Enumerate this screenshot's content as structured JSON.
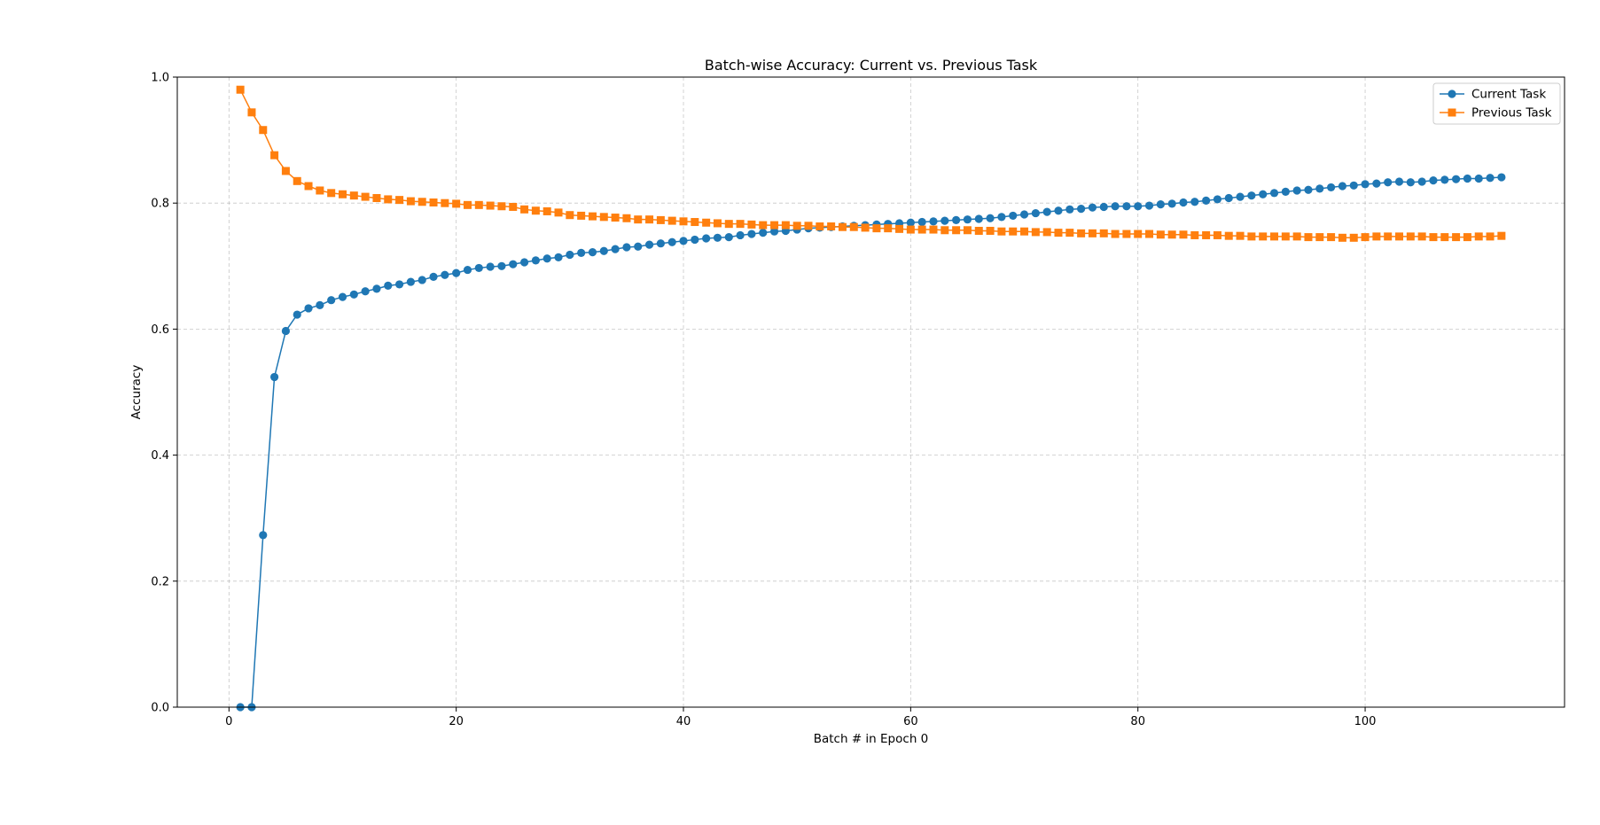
{
  "chart_data": {
    "type": "line",
    "title": "Batch-wise Accuracy: Current vs. Previous Task",
    "xlabel": "Batch # in Epoch 0",
    "ylabel": "Accuracy",
    "xlim": [
      -4.55,
      117.55
    ],
    "ylim": [
      0,
      1
    ],
    "x_ticks": [
      0,
      20,
      40,
      60,
      80,
      100
    ],
    "y_ticks": [
      0.0,
      0.2,
      0.4,
      0.6,
      0.8,
      1.0
    ],
    "grid": true,
    "legend_position": "top-right",
    "x": [
      1,
      2,
      3,
      4,
      5,
      6,
      7,
      8,
      9,
      10,
      11,
      12,
      13,
      14,
      15,
      16,
      17,
      18,
      19,
      20,
      21,
      22,
      23,
      24,
      25,
      26,
      27,
      28,
      29,
      30,
      31,
      32,
      33,
      34,
      35,
      36,
      37,
      38,
      39,
      40,
      41,
      42,
      43,
      44,
      45,
      46,
      47,
      48,
      49,
      50,
      51,
      52,
      53,
      54,
      55,
      56,
      57,
      58,
      59,
      60,
      61,
      62,
      63,
      64,
      65,
      66,
      67,
      68,
      69,
      70,
      71,
      72,
      73,
      74,
      75,
      76,
      77,
      78,
      79,
      80,
      81,
      82,
      83,
      84,
      85,
      86,
      87,
      88,
      89,
      90,
      91,
      92,
      93,
      94,
      95,
      96,
      97,
      98,
      99,
      100,
      101,
      102,
      103,
      104,
      105,
      106,
      107,
      108,
      109,
      110,
      111,
      112
    ],
    "series": [
      {
        "name": "Current Task",
        "color": "#1f77b4",
        "marker": "circle",
        "values": [
          0.0,
          0.0,
          0.273,
          0.524,
          0.597,
          0.623,
          0.633,
          0.638,
          0.646,
          0.651,
          0.655,
          0.66,
          0.664,
          0.669,
          0.671,
          0.675,
          0.678,
          0.683,
          0.686,
          0.689,
          0.694,
          0.697,
          0.699,
          0.7,
          0.703,
          0.706,
          0.709,
          0.712,
          0.714,
          0.718,
          0.721,
          0.722,
          0.724,
          0.727,
          0.73,
          0.731,
          0.734,
          0.736,
          0.738,
          0.74,
          0.742,
          0.744,
          0.745,
          0.746,
          0.749,
          0.751,
          0.753,
          0.755,
          0.756,
          0.758,
          0.76,
          0.761,
          0.762,
          0.763,
          0.764,
          0.765,
          0.766,
          0.767,
          0.768,
          0.769,
          0.77,
          0.771,
          0.772,
          0.773,
          0.774,
          0.775,
          0.776,
          0.778,
          0.78,
          0.782,
          0.784,
          0.786,
          0.788,
          0.79,
          0.791,
          0.793,
          0.794,
          0.795,
          0.795,
          0.795,
          0.796,
          0.798,
          0.799,
          0.801,
          0.802,
          0.804,
          0.806,
          0.808,
          0.81,
          0.812,
          0.814,
          0.816,
          0.818,
          0.82,
          0.821,
          0.823,
          0.825,
          0.827,
          0.828,
          0.83,
          0.831,
          0.833,
          0.834,
          0.833,
          0.834,
          0.836,
          0.837,
          0.838,
          0.839,
          0.839,
          0.84,
          0.841
        ]
      },
      {
        "name": "Previous Task",
        "color": "#ff7f0e",
        "marker": "square",
        "values": [
          0.98,
          0.944,
          0.916,
          0.876,
          0.851,
          0.835,
          0.827,
          0.82,
          0.816,
          0.814,
          0.812,
          0.81,
          0.808,
          0.806,
          0.805,
          0.803,
          0.802,
          0.801,
          0.8,
          0.799,
          0.797,
          0.797,
          0.796,
          0.795,
          0.794,
          0.79,
          0.788,
          0.787,
          0.785,
          0.781,
          0.78,
          0.779,
          0.778,
          0.777,
          0.776,
          0.774,
          0.774,
          0.773,
          0.772,
          0.771,
          0.77,
          0.769,
          0.768,
          0.767,
          0.767,
          0.766,
          0.765,
          0.765,
          0.765,
          0.764,
          0.764,
          0.763,
          0.763,
          0.762,
          0.762,
          0.761,
          0.76,
          0.76,
          0.759,
          0.758,
          0.758,
          0.758,
          0.757,
          0.757,
          0.757,
          0.756,
          0.756,
          0.755,
          0.755,
          0.755,
          0.754,
          0.754,
          0.753,
          0.753,
          0.752,
          0.752,
          0.752,
          0.751,
          0.751,
          0.751,
          0.751,
          0.75,
          0.75,
          0.75,
          0.749,
          0.749,
          0.749,
          0.748,
          0.748,
          0.747,
          0.747,
          0.747,
          0.747,
          0.747,
          0.746,
          0.746,
          0.746,
          0.745,
          0.745,
          0.746,
          0.747,
          0.747,
          0.747,
          0.747,
          0.747,
          0.746,
          0.746,
          0.746,
          0.746,
          0.747,
          0.747,
          0.748
        ]
      }
    ]
  }
}
